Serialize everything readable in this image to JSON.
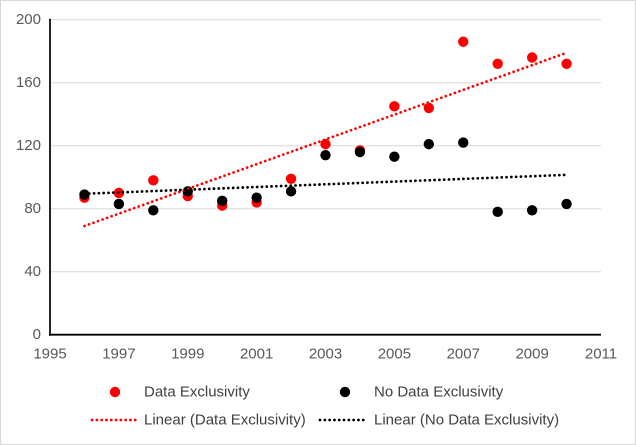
{
  "chart_data": {
    "type": "scatter",
    "title": "",
    "xlabel": "",
    "ylabel": "",
    "x": [
      1996,
      1997,
      1998,
      1999,
      2000,
      2001,
      2002,
      2003,
      2004,
      2005,
      2006,
      2007,
      2008,
      2009,
      2010
    ],
    "series": [
      {
        "name": "Data Exclusivity",
        "color": "#FF0000",
        "marker": "circle",
        "values": [
          87,
          90,
          98,
          88,
          82,
          84,
          99,
          121,
          117,
          145,
          144,
          186,
          172,
          176,
          172
        ]
      },
      {
        "name": "No Data Exclusivity",
        "color": "#000000",
        "marker": "circle",
        "values": [
          89,
          83,
          79,
          91,
          85,
          87,
          91,
          114,
          116,
          113,
          121,
          122,
          78,
          79,
          83
        ]
      }
    ],
    "trendlines": [
      {
        "name": "Linear (Data Exclusivity)",
        "color": "#FF0000",
        "style": "round-dot",
        "x_start": 1996,
        "y_start": 69,
        "x_end": 2010,
        "y_end": 179
      },
      {
        "name": "Linear (No Data Exclusivity)",
        "color": "#000000",
        "style": "round-dot",
        "x_start": 1996,
        "y_start": 89.5,
        "x_end": 2010,
        "y_end": 101.5
      }
    ],
    "x_axis": {
      "min": 1995,
      "max": 2011,
      "tick_step": 2,
      "ticks": [
        "1995",
        "1997",
        "1999",
        "2001",
        "2003",
        "2005",
        "2007",
        "2009",
        "2011"
      ]
    },
    "y_axis": {
      "min": 0,
      "max": 200,
      "tick_step": 40,
      "ticks": [
        "0",
        "40",
        "80",
        "120",
        "160",
        "200"
      ]
    },
    "grid": true,
    "legend_position": "bottom",
    "colors": {
      "grid": "#D9D9D9",
      "axis": "#000000",
      "tick_text": "#595959",
      "legend_text": "#404040",
      "background": "#FFFFFF",
      "border": "#D9D9D9"
    }
  }
}
